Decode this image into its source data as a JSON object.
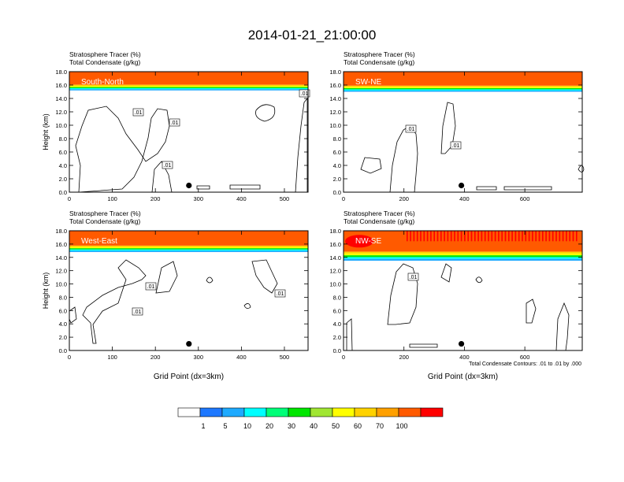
{
  "title": "2014-01-21_21:00:00",
  "footnote": "Total Condensate Contours: .01 to .01 by .000",
  "colors": {
    "scale": [
      "#ffffff",
      "#1e78ff",
      "#1eaaff",
      "#00ffff",
      "#00ff78",
      "#00e600",
      "#a0e632",
      "#ffff00",
      "#ffd200",
      "#ffa000",
      "#ff5a00",
      "#ff0000"
    ],
    "contour": "#000000",
    "marker": "#000000"
  },
  "colorbar": {
    "labels": [
      "1",
      "5",
      "10",
      "20",
      "30",
      "40",
      "50",
      "60",
      "70",
      "100"
    ]
  },
  "chart_data": [
    {
      "type": "heatmap",
      "panel_label": "South-North",
      "subtitle_line1": "Stratosphere Tracer   (%)",
      "subtitle_line2": "Total Condensate   (g/kg)",
      "ylabel": "Height (km)",
      "xlabel": "",
      "xlim": [
        0,
        555
      ],
      "ylim": [
        0,
        18
      ],
      "xticks": [
        "0",
        "100",
        "200",
        "300",
        "400",
        "500"
      ],
      "yticks": [
        "0.0",
        "2.0",
        "4.0",
        "6.0",
        "8.0",
        "10.0",
        "12.0",
        "14.0",
        "16.0",
        "18.0"
      ],
      "tracer_base_km": 15.2,
      "contour_labels": [
        ".01",
        ".01",
        ".01",
        ".01"
      ],
      "marker_x": 278,
      "marker_y_km": 1.0
    },
    {
      "type": "heatmap",
      "panel_label": "SW-NE",
      "subtitle_line1": "Stratosphere Tracer   (%)",
      "subtitle_line2": "Total Condensate   (g/kg)",
      "ylabel": "",
      "xlabel": "",
      "xlim": [
        0,
        790
      ],
      "ylim": [
        0,
        18
      ],
      "xticks": [
        "0",
        "200",
        "400",
        "600"
      ],
      "yticks": [
        "0.0",
        "2.0",
        "4.0",
        "6.0",
        "8.0",
        "10.0",
        "12.0",
        "14.0",
        "16.0",
        "18.0"
      ],
      "tracer_base_km": 15.0,
      "contour_labels": [
        ".01",
        ".01"
      ],
      "marker_x": 390,
      "marker_y_km": 1.0
    },
    {
      "type": "heatmap",
      "panel_label": "West-East",
      "subtitle_line1": "Stratosphere Tracer   (%)",
      "subtitle_line2": "Total Condensate   (g/kg)",
      "ylabel": "Height (km)",
      "xlabel": "Grid Point (dx=3km)",
      "xlim": [
        0,
        555
      ],
      "ylim": [
        0,
        18
      ],
      "xticks": [
        "0",
        "100",
        "200",
        "300",
        "400",
        "500"
      ],
      "yticks": [
        "0.0",
        "2.0",
        "4.0",
        "6.0",
        "8.0",
        "10.0",
        "12.0",
        "14.0",
        "16.0",
        "18.0"
      ],
      "tracer_base_km": 14.8,
      "contour_labels": [
        ".01",
        ".01",
        ".01"
      ],
      "marker_x": 278,
      "marker_y_km": 1.0
    },
    {
      "type": "heatmap",
      "panel_label": "NW-SE",
      "subtitle_line1": "Stratosphere Tracer   (%)",
      "subtitle_line2": "Total Condensate   (g/kg)",
      "ylabel": "",
      "xlabel": "Grid Point (dx=3km)",
      "xlim": [
        0,
        790
      ],
      "ylim": [
        0,
        18
      ],
      "xticks": [
        "0",
        "200",
        "400",
        "600"
      ],
      "yticks": [
        "0.0",
        "2.0",
        "4.0",
        "6.0",
        "8.0",
        "10.0",
        "12.0",
        "14.0",
        "16.0",
        "18.0"
      ],
      "tracer_base_km": 13.5,
      "contour_labels": [
        ".01"
      ],
      "marker_x": 390,
      "marker_y_km": 1.0
    }
  ]
}
